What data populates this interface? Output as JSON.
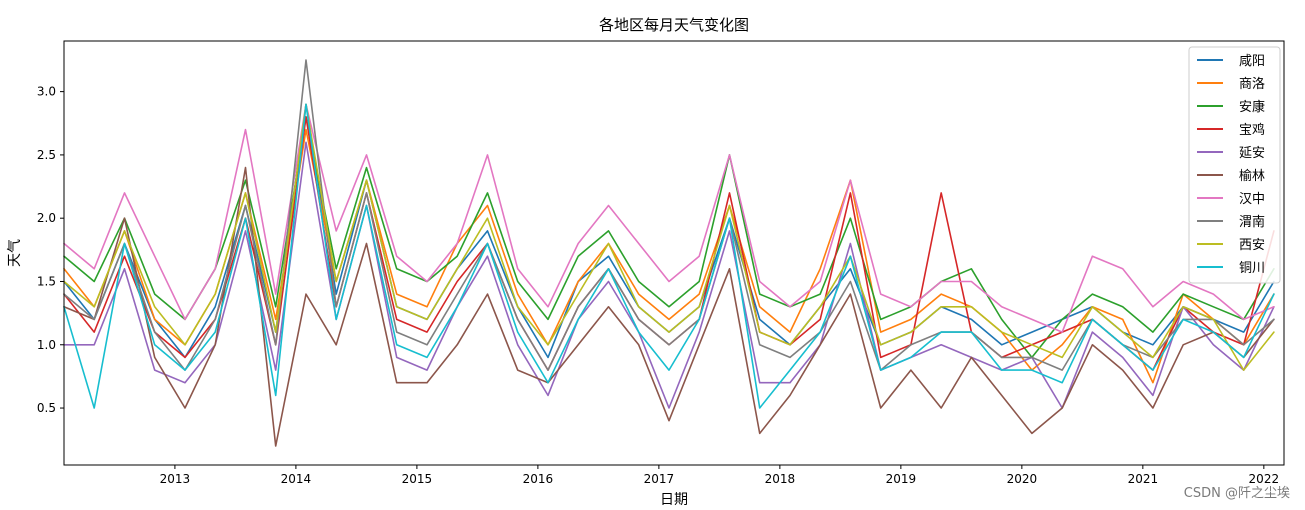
{
  "watermark": "CSDN @阡之尘埃",
  "chart_data": {
    "type": "line",
    "title": "各地区每月天气变化图",
    "xlabel": "日期",
    "ylabel": "天气",
    "xlim": [
      "2012-02",
      "2022-03"
    ],
    "ylim": [
      0.05,
      3.4
    ],
    "x_ticks": [
      "2013",
      "2014",
      "2015",
      "2016",
      "2017",
      "2018",
      "2019",
      "2020",
      "2021",
      "2022"
    ],
    "y_ticks": [
      "0.5",
      "1.0",
      "1.5",
      "2.0",
      "2.5",
      "3.0"
    ],
    "grid": false,
    "legend_position": "top-right",
    "x": [
      "2012-02",
      "2012-05",
      "2012-08",
      "2012-11",
      "2013-02",
      "2013-05",
      "2013-08",
      "2013-11",
      "2014-02",
      "2014-05",
      "2014-08",
      "2014-11",
      "2015-02",
      "2015-05",
      "2015-08",
      "2015-11",
      "2016-02",
      "2016-05",
      "2016-08",
      "2016-11",
      "2017-02",
      "2017-05",
      "2017-08",
      "2017-11",
      "2018-02",
      "2018-05",
      "2018-08",
      "2018-11",
      "2019-02",
      "2019-05",
      "2019-08",
      "2019-11",
      "2020-02",
      "2020-05",
      "2020-08",
      "2020-11",
      "2021-02",
      "2021-05",
      "2021-08",
      "2021-11",
      "2022-02"
    ],
    "series": [
      {
        "name": "咸阳",
        "color": "#1f77b4",
        "values": [
          1.5,
          1.2,
          1.8,
          1.2,
          0.9,
          1.3,
          2.1,
          1.1,
          2.9,
          1.4,
          2.3,
          1.3,
          1.2,
          1.6,
          1.9,
          1.3,
          0.9,
          1.5,
          1.7,
          1.3,
          1.1,
          1.3,
          2.0,
          1.2,
          1.0,
          1.3,
          1.6,
          1.0,
          1.1,
          1.3,
          1.2,
          1.0,
          1.1,
          1.2,
          1.3,
          1.1,
          1.0,
          1.3,
          1.2,
          1.1,
          1.5
        ]
      },
      {
        "name": "商洛",
        "color": "#ff7f0e",
        "values": [
          1.6,
          1.3,
          1.9,
          1.2,
          1.0,
          1.4,
          2.2,
          1.2,
          2.7,
          1.5,
          2.3,
          1.4,
          1.3,
          1.8,
          2.1,
          1.4,
          1.0,
          1.5,
          1.8,
          1.4,
          1.2,
          1.4,
          2.1,
          1.3,
          1.1,
          1.6,
          2.3,
          1.1,
          1.2,
          1.4,
          1.3,
          1.1,
          0.8,
          1.0,
          1.3,
          1.2,
          0.7,
          1.4,
          1.2,
          1.0,
          1.4
        ]
      },
      {
        "name": "安康",
        "color": "#2ca02c",
        "values": [
          1.7,
          1.5,
          2.0,
          1.4,
          1.2,
          1.6,
          2.3,
          1.3,
          2.8,
          1.6,
          2.4,
          1.6,
          1.5,
          1.7,
          2.2,
          1.5,
          1.2,
          1.7,
          1.9,
          1.5,
          1.3,
          1.5,
          2.5,
          1.4,
          1.3,
          1.4,
          2.0,
          1.2,
          1.3,
          1.5,
          1.6,
          1.2,
          0.9,
          1.2,
          1.4,
          1.3,
          1.1,
          1.4,
          1.3,
          1.2,
          1.6
        ]
      },
      {
        "name": "宝鸡",
        "color": "#d62728",
        "values": [
          1.4,
          1.1,
          1.7,
          1.1,
          0.9,
          1.2,
          2.0,
          1.0,
          2.8,
          1.3,
          2.2,
          1.2,
          1.1,
          1.5,
          1.8,
          1.2,
          0.8,
          1.3,
          1.6,
          1.2,
          1.0,
          1.2,
          2.2,
          1.1,
          1.0,
          1.2,
          2.2,
          0.9,
          1.0,
          2.2,
          1.1,
          0.9,
          1.0,
          1.1,
          1.2,
          1.0,
          0.8,
          1.3,
          1.1,
          1.0,
          1.9
        ]
      },
      {
        "name": "延安",
        "color": "#9467bd",
        "values": [
          1.0,
          1.0,
          1.6,
          0.8,
          0.7,
          1.0,
          1.9,
          0.8,
          2.6,
          1.2,
          2.1,
          0.9,
          0.8,
          1.3,
          1.7,
          1.0,
          0.6,
          1.2,
          1.5,
          1.1,
          0.5,
          1.1,
          1.9,
          0.7,
          0.7,
          1.0,
          1.8,
          0.8,
          0.9,
          1.0,
          0.9,
          0.8,
          0.9,
          0.5,
          1.1,
          0.9,
          0.6,
          1.3,
          1.0,
          0.8,
          1.3
        ]
      },
      {
        "name": "榆林",
        "color": "#8c564b",
        "values": [
          1.3,
          1.2,
          2.0,
          0.9,
          0.5,
          1.0,
          2.4,
          0.2,
          1.4,
          1.0,
          1.8,
          0.7,
          0.7,
          1.0,
          1.4,
          0.8,
          0.7,
          1.0,
          1.3,
          1.0,
          0.4,
          1.0,
          1.6,
          0.3,
          0.6,
          1.0,
          1.4,
          0.5,
          0.8,
          0.5,
          0.9,
          0.6,
          0.3,
          0.5,
          1.0,
          0.8,
          0.5,
          1.0,
          1.1,
          0.9,
          1.2
        ]
      },
      {
        "name": "汉中",
        "color": "#e377c2",
        "values": [
          1.8,
          1.6,
          2.2,
          1.7,
          1.2,
          1.6,
          2.7,
          1.4,
          2.9,
          1.9,
          2.5,
          1.7,
          1.5,
          1.8,
          2.5,
          1.6,
          1.3,
          1.8,
          2.1,
          1.8,
          1.5,
          1.7,
          2.5,
          1.5,
          1.3,
          1.5,
          2.3,
          1.4,
          1.3,
          1.5,
          1.5,
          1.3,
          1.2,
          1.1,
          1.7,
          1.6,
          1.3,
          1.5,
          1.4,
          1.2,
          1.3
        ]
      },
      {
        "name": "渭南",
        "color": "#7f7f7f",
        "values": [
          1.4,
          1.2,
          1.8,
          1.1,
          0.8,
          1.2,
          2.1,
          1.0,
          3.25,
          1.3,
          2.2,
          1.1,
          1.0,
          1.4,
          1.8,
          1.2,
          0.8,
          1.3,
          1.6,
          1.2,
          1.0,
          1.2,
          2.0,
          1.0,
          0.9,
          1.1,
          1.5,
          0.8,
          1.0,
          1.1,
          1.1,
          0.9,
          0.9,
          0.8,
          1.2,
          1.0,
          0.9,
          1.2,
          1.2,
          1.0,
          1.2
        ]
      },
      {
        "name": "西安",
        "color": "#bcbd22",
        "values": [
          1.5,
          1.3,
          1.9,
          1.3,
          1.0,
          1.4,
          2.2,
          1.1,
          2.9,
          1.5,
          2.3,
          1.3,
          1.2,
          1.6,
          2.0,
          1.3,
          1.0,
          1.4,
          1.8,
          1.3,
          1.1,
          1.3,
          2.1,
          1.1,
          1.0,
          1.3,
          1.7,
          1.0,
          1.1,
          1.3,
          1.3,
          1.1,
          1.0,
          0.9,
          1.3,
          1.1,
          0.9,
          1.3,
          1.2,
          0.8,
          1.1
        ]
      },
      {
        "name": "铜川",
        "color": "#17becf",
        "values": [
          1.3,
          0.5,
          1.8,
          1.0,
          0.8,
          1.1,
          2.0,
          0.6,
          2.9,
          1.2,
          2.1,
          1.0,
          0.9,
          1.3,
          1.8,
          1.1,
          0.7,
          1.2,
          1.6,
          1.1,
          0.8,
          1.2,
          2.0,
          0.5,
          0.8,
          1.1,
          1.7,
          0.8,
          0.9,
          1.1,
          1.1,
          0.8,
          0.8,
          0.7,
          1.2,
          1.0,
          0.8,
          1.2,
          1.1,
          0.9,
          1.4
        ]
      }
    ]
  }
}
